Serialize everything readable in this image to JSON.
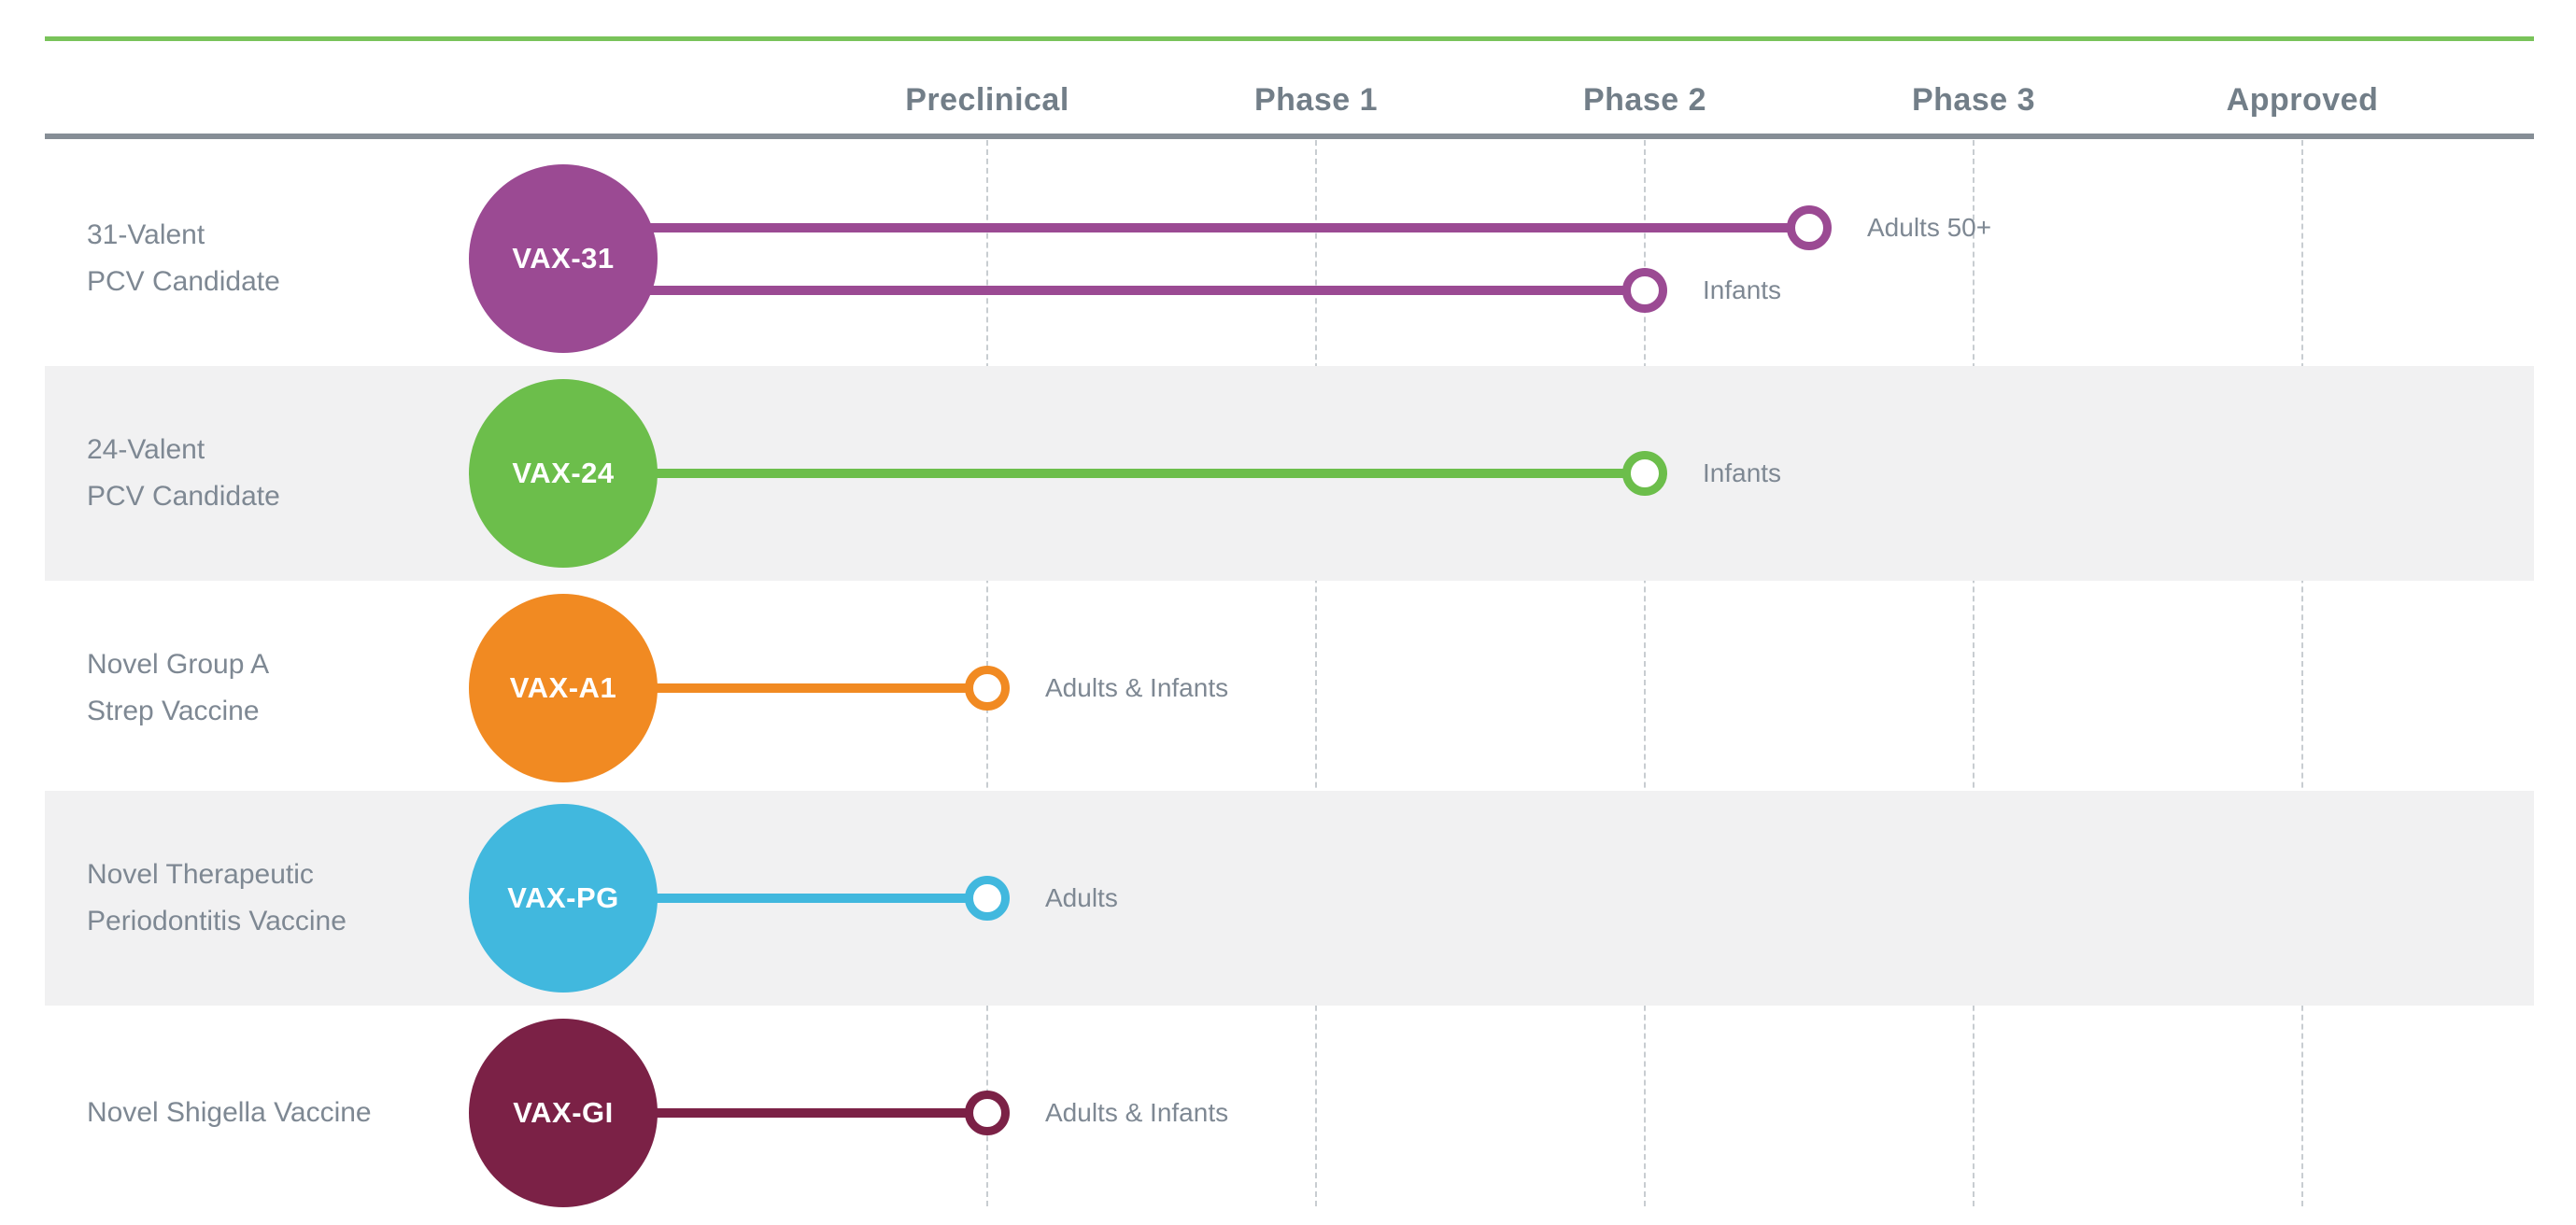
{
  "title": "Vaccine pipeline stage chart",
  "header": {
    "columns": [
      "Preclinical",
      "Phase 1",
      "Phase 2",
      "Phase 3",
      "Approved"
    ]
  },
  "colors": {
    "top_accent_green": "#79C35A",
    "header_text_gray": "#727E88",
    "header_divider_gray": "#868E96",
    "gridline_gray": "#C8CDD1",
    "band_gray": "#F1F1F2",
    "label_gray": "#7E8893",
    "white": "#ffffff"
  },
  "chart_data": {
    "type": "bar",
    "orientation": "horizontal",
    "title": "",
    "xlabel": "",
    "ylabel": "",
    "categories": [
      "Preclinical",
      "Phase 1",
      "Phase 2",
      "Phase 3",
      "Approved"
    ],
    "stage_scale_note": "end_stage_value: 0=Preclinical, 1=Phase 1, 2=Phase 2, 3=Phase 3, 4=Approved; bars run from program bubble to stage position",
    "grid": "dashed vertical stage gridlines",
    "legend": "none",
    "rows": [
      {
        "program": "VAX-31",
        "label_lines": [
          "31-Valent",
          "PCV Candidate"
        ],
        "color": "#9B4A93",
        "banded": false,
        "bars": [
          {
            "audience": "Adults 50+",
            "end_stage_value": 2.5,
            "end_stage": "between Phase 2 and Phase 3"
          },
          {
            "audience": "Infants",
            "end_stage_value": 2,
            "end_stage": "Phase 2"
          }
        ]
      },
      {
        "program": "VAX-24",
        "label_lines": [
          "24-Valent",
          "PCV Candidate"
        ],
        "color": "#6CBE4B",
        "banded": true,
        "bars": [
          {
            "audience": "Infants",
            "end_stage_value": 2,
            "end_stage": "Phase 2"
          }
        ]
      },
      {
        "program": "VAX-A1",
        "label_lines": [
          "Novel Group A",
          "Strep Vaccine"
        ],
        "color": "#F18A22",
        "banded": false,
        "bars": [
          {
            "audience": "Adults & Infants",
            "end_stage_value": 0,
            "end_stage": "Preclinical"
          }
        ]
      },
      {
        "program": "VAX-PG",
        "label_lines": [
          "Novel Therapeutic",
          "Periodontitis Vaccine"
        ],
        "color": "#41B8DE",
        "banded": true,
        "bars": [
          {
            "audience": "Adults",
            "end_stage_value": 0,
            "end_stage": "Preclinical"
          }
        ]
      },
      {
        "program": "VAX-GI",
        "label_lines": [
          "Novel Shigella Vaccine"
        ],
        "color": "#7B2146",
        "banded": false,
        "bars": [
          {
            "audience": "Adults & Infants",
            "end_stage_value": 0,
            "end_stage": "Preclinical"
          }
        ]
      }
    ]
  }
}
